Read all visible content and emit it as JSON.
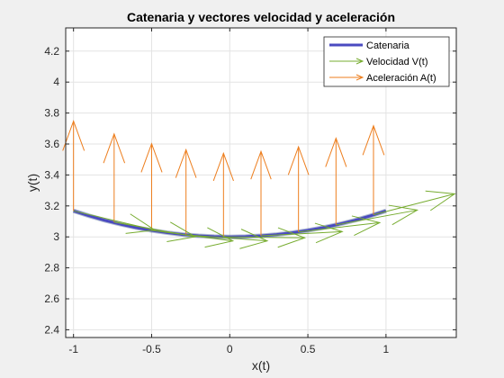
{
  "chart_data": {
    "type": "line",
    "title": "Catenaria y vectores velocidad y aceleración",
    "xlabel": "x(t)",
    "ylabel": "y(t)",
    "xlim": [
      -1.05,
      1.45
    ],
    "ylim": [
      2.35,
      4.35
    ],
    "xticks": [
      -1,
      -0.5,
      0,
      0.5,
      1
    ],
    "xtick_labels": [
      "-1",
      "-0.5",
      "0",
      "0.5",
      "1"
    ],
    "yticks": [
      2.4,
      2.6,
      2.8,
      3,
      3.2,
      3.4,
      3.6,
      3.8,
      4,
      4.2
    ],
    "ytick_labels": [
      "2.4",
      "2.6",
      "2.8",
      "3",
      "3.2",
      "3.4",
      "3.6",
      "3.8",
      "4",
      "4.2"
    ],
    "grid": true,
    "legend_position": "top-right",
    "series": [
      {
        "name": "Catenaria",
        "color": "#4a4ac0",
        "x": [
          -1.0,
          -0.9,
          -0.8,
          -0.7,
          -0.6,
          -0.5,
          -0.4,
          -0.3,
          -0.2,
          -0.1,
          0.0,
          0.1,
          0.2,
          0.3,
          0.4,
          0.5,
          0.6,
          0.7,
          0.8,
          0.9,
          1.0
        ],
        "y": [
          3.168,
          3.136,
          3.107,
          3.082,
          3.06,
          3.042,
          3.027,
          3.015,
          3.007,
          3.002,
          3.0,
          3.002,
          3.007,
          3.015,
          3.027,
          3.042,
          3.06,
          3.082,
          3.107,
          3.136,
          3.168
        ]
      },
      {
        "name": "Velocidad V(t)",
        "color": "#77ac30",
        "x0": [
          -1.0,
          -0.74,
          -0.5,
          -0.28,
          -0.04,
          0.2,
          0.44,
          0.68,
          0.92
        ],
        "y0": [
          3.168,
          3.095,
          3.042,
          3.013,
          3.0,
          3.007,
          3.032,
          3.077,
          3.143
        ],
        "u": [
          0.52,
          0.52,
          0.52,
          0.52,
          0.52,
          0.52,
          0.52,
          0.52,
          0.52
        ],
        "v": [
          -0.124,
          -0.094,
          -0.068,
          -0.039,
          -0.006,
          0.027,
          0.06,
          0.096,
          0.135
        ]
      },
      {
        "name": "Aceleración A(t)",
        "color": "#ed7e1e",
        "x0": [
          -1.0,
          -0.74,
          -0.5,
          -0.28,
          -0.04,
          0.2,
          0.44,
          0.68,
          0.92
        ],
        "y0": [
          3.168,
          3.095,
          3.042,
          3.013,
          3.0,
          3.007,
          3.032,
          3.077,
          3.143
        ],
        "u": [
          0,
          0,
          0,
          0,
          0,
          0,
          0,
          0,
          0
        ],
        "v": [
          0.58,
          0.57,
          0.56,
          0.55,
          0.54,
          0.545,
          0.55,
          0.56,
          0.575
        ]
      }
    ]
  }
}
